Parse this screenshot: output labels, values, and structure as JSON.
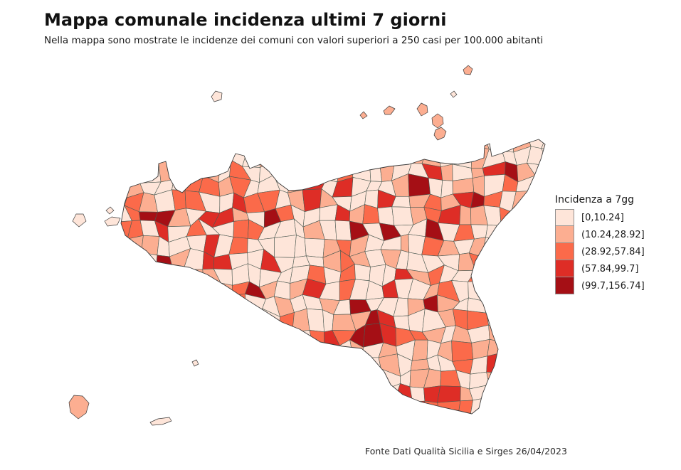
{
  "page": {
    "title": "Mappa comunale incidenza ultimi 7 giorni",
    "subtitle": "Nella mappa sono mostrate le incidenze dei comuni con valori superiori a 250 casi per 100.000 abitanti",
    "source": "Fonte Dati Qualità Sicilia e Sirges 26/04/2023"
  },
  "legend": {
    "title": "Incidenza a 7gg",
    "classes": [
      {
        "label": "[0,10.24]",
        "color": "#fee5d9"
      },
      {
        "label": "(10.24,28.92]",
        "color": "#fcae91"
      },
      {
        "label": "(28.92,57.84]",
        "color": "#fb6a4a"
      },
      {
        "label": "(57.84,99.7]",
        "color": "#de2d26"
      },
      {
        "label": "(99.7,156.74]",
        "color": "#a50f15"
      }
    ],
    "swatch_border_color": "#909090"
  },
  "map": {
    "region_name": "Sicilia",
    "commune_border_color": "#4d5a52",
    "coastline_color": "#3a3a3a",
    "sea_color": "#ffffff"
  },
  "chart_data": {
    "type": "choropleth",
    "title": "Mappa comunale incidenza ultimi 7 giorni",
    "subtitle": "Nella mappa sono mostrate le incidenze dei comuni con valori superiori a 250 casi per 100.000 abitanti",
    "legend_title": "Incidenza a 7gg",
    "geography": "Comuni della Sicilia",
    "class_breaks": [
      0,
      10.24,
      28.92,
      57.84,
      99.7,
      156.74
    ],
    "class_labels": [
      "[0,10.24]",
      "(10.24,28.92]",
      "(28.92,57.84]",
      "(57.84,99.7]",
      "(99.7,156.74]"
    ],
    "palette": [
      "#fee5d9",
      "#fcae91",
      "#fb6a4a",
      "#de2d26",
      "#a50f15"
    ],
    "legend_position": "right",
    "source": "Fonte Dati Qualità Sicilia e Sirges 26/04/2023"
  }
}
